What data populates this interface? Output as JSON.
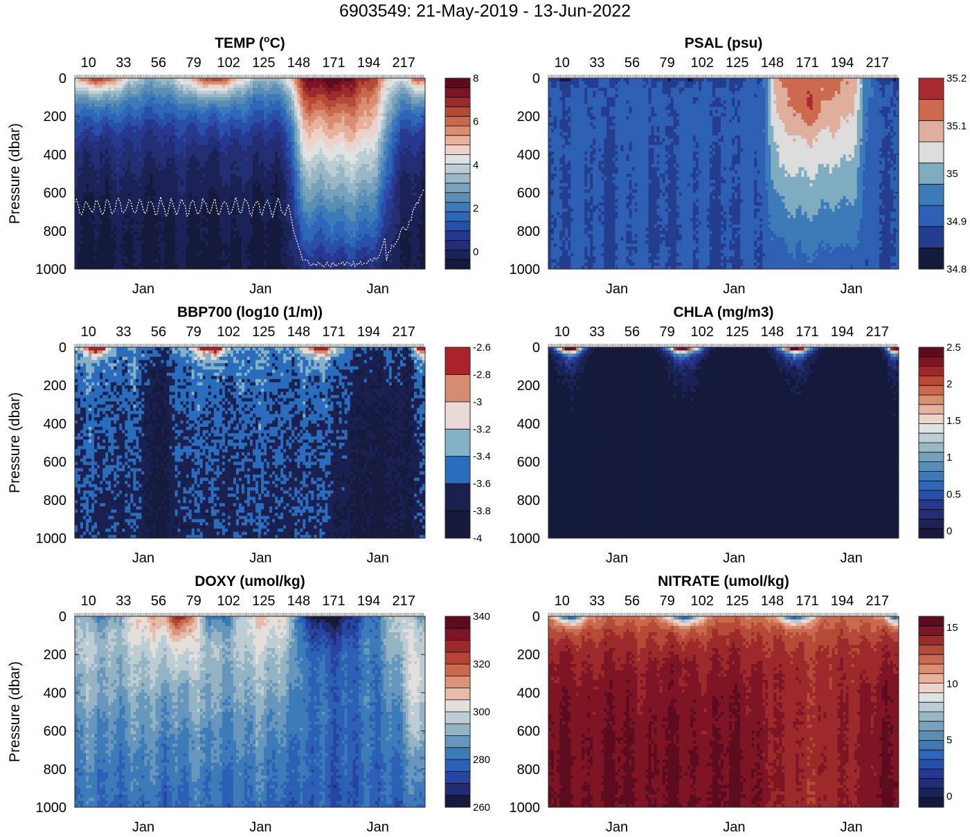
{
  "figure_title": "6903549: 21-May-2019 - 13-Jun-2022",
  "chart_data": [
    {
      "type": "heatmap",
      "id": "temp",
      "title_main": "TEMP (",
      "title_sup": "o",
      "title_unit": "C)",
      "ylabel": "Pressure (dbar)",
      "ylim": [
        0,
        1000
      ],
      "yticks": [
        "0",
        "200",
        "400",
        "600",
        "800",
        "1000"
      ],
      "profile_ticks": [
        "10",
        "33",
        "56",
        "79",
        "102",
        "125",
        "148",
        "171",
        "194",
        "217"
      ],
      "xlabels": [
        "Jan",
        "Jan",
        "Jan"
      ],
      "colorbar": {
        "min": -0.8,
        "max": 8,
        "ticks": [
          "8",
          "6",
          "4",
          "2",
          "0"
        ],
        "colors": [
          "#151a3c",
          "#1b2255",
          "#232e72",
          "#26398f",
          "#2850a8",
          "#2e66b8",
          "#3f7ab8",
          "#5a8fb5",
          "#78a2bb",
          "#99b7c5",
          "#bccdd4",
          "#dde2e2",
          "#ecd2c8",
          "#e6b29c",
          "#d98d71",
          "#c96a4f",
          "#b54a37",
          "#9c2a2a",
          "#7e1525",
          "#5c0c1e"
        ]
      },
      "mld_line": true
    },
    {
      "type": "heatmap",
      "id": "psal",
      "title_main": "PSAL (psu)",
      "title_sup": "",
      "title_unit": "",
      "ylabel": "",
      "ylim": [
        0,
        1000
      ],
      "yticks": [
        "0",
        "200",
        "400",
        "600",
        "800",
        "1000"
      ],
      "profile_ticks": [
        "10",
        "33",
        "56",
        "79",
        "102",
        "125",
        "148",
        "171",
        "194",
        "217"
      ],
      "xlabels": [
        "Jan",
        "Jan",
        "Jan"
      ],
      "colorbar": {
        "min": 34.8,
        "max": 35.2,
        "ticks": [
          "35.2",
          "35.1",
          "35",
          "34.9",
          "34.8"
        ],
        "colors": [
          "#151a3c",
          "#243d8e",
          "#2d5fb3",
          "#3d7ab8",
          "#80acc0",
          "#dcdcdc",
          "#dfae9c",
          "#cc6a50",
          "#a92a30"
        ]
      },
      "mld_line": false
    },
    {
      "type": "heatmap",
      "id": "bbp",
      "title_main": "BBP700 (log10 (1/m))",
      "title_sup": "",
      "title_unit": "",
      "ylabel": "Pressure (dbar)",
      "ylim": [
        0,
        1000
      ],
      "yticks": [
        "0",
        "200",
        "400",
        "600",
        "800",
        "1000"
      ],
      "profile_ticks": [
        "10",
        "33",
        "56",
        "79",
        "102",
        "125",
        "148",
        "171",
        "194",
        "217"
      ],
      "xlabels": [
        "Jan",
        "Jan",
        "Jan"
      ],
      "colorbar": {
        "min": -4,
        "max": -2.6,
        "ticks": [
          "-2.6",
          "-2.8",
          "-3",
          "-3.2",
          "-3.4",
          "-3.6",
          "-3.8",
          "-4"
        ],
        "colors": [
          "#161a3d",
          "#1a2150",
          "#2a6dbc",
          "#85b1c4",
          "#e8dad6",
          "#d58c72",
          "#a9232a"
        ]
      },
      "mld_line": false
    },
    {
      "type": "heatmap",
      "id": "chla",
      "title_main": "CHLA (mg/m3)",
      "title_sup": "",
      "title_unit": "",
      "ylabel": "",
      "ylim": [
        0,
        1000
      ],
      "yticks": [
        "0",
        "200",
        "400",
        "600",
        "800",
        "1000"
      ],
      "profile_ticks": [
        "10",
        "33",
        "56",
        "79",
        "102",
        "125",
        "148",
        "171",
        "194",
        "217"
      ],
      "xlabels": [
        "Jan",
        "Jan",
        "Jan"
      ],
      "colorbar": {
        "min": -0.1,
        "max": 2.5,
        "ticks": [
          "2.5",
          "2",
          "1.5",
          "1",
          "0.5",
          "0"
        ],
        "colors": [
          "#151a3c",
          "#1b2255",
          "#232e72",
          "#26398f",
          "#2850a8",
          "#2e66b8",
          "#3f7ab8",
          "#5a8fb5",
          "#78a2bb",
          "#99b7c5",
          "#bccdd4",
          "#dde2e2",
          "#ecd2c8",
          "#e6b29c",
          "#d98d71",
          "#c96a4f",
          "#b54a37",
          "#9c2a2a",
          "#7e1525",
          "#5c0c1e"
        ]
      },
      "mld_line": false
    },
    {
      "type": "heatmap",
      "id": "doxy",
      "title_main": "DOXY (umol/kg)",
      "title_sup": "",
      "title_unit": "",
      "ylabel": "Pressure (dbar)",
      "ylim": [
        0,
        1000
      ],
      "yticks": [
        "0",
        "200",
        "400",
        "600",
        "800",
        "1000"
      ],
      "profile_ticks": [
        "10",
        "33",
        "56",
        "79",
        "102",
        "125",
        "148",
        "171",
        "194",
        "217"
      ],
      "xlabels": [
        "Jan",
        "Jan",
        "Jan"
      ],
      "colorbar": {
        "min": 260,
        "max": 340,
        "ticks": [
          "340",
          "320",
          "300",
          "280",
          "260"
        ],
        "colors": [
          "#151a3c",
          "#212d70",
          "#2744a0",
          "#2c60b5",
          "#3d7ab8",
          "#6696bb",
          "#94b3c3",
          "#bccdd4",
          "#e3e0dc",
          "#e6bcaa",
          "#d9957a",
          "#c96a4f",
          "#b54435",
          "#9c2a2a",
          "#7e1525",
          "#5c0c1e"
        ]
      },
      "mld_line": false
    },
    {
      "type": "heatmap",
      "id": "nitrate",
      "title_main": "NITRATE (umol/kg)",
      "title_sup": "",
      "title_unit": "",
      "ylabel": "",
      "ylim": [
        0,
        1000
      ],
      "yticks": [
        "0",
        "200",
        "400",
        "600",
        "800",
        "1000"
      ],
      "profile_ticks": [
        "10",
        "33",
        "56",
        "79",
        "102",
        "125",
        "148",
        "171",
        "194",
        "217"
      ],
      "xlabels": [
        "Jan",
        "Jan",
        "Jan"
      ],
      "colorbar": {
        "min": -1,
        "max": 16,
        "ticks": [
          "15",
          "10",
          "5",
          "0"
        ],
        "colors": [
          "#151a3c",
          "#1b2255",
          "#232e72",
          "#26398f",
          "#2850a8",
          "#2e66b8",
          "#3f7ab8",
          "#5a8fb5",
          "#78a2bb",
          "#99b7c5",
          "#bccdd4",
          "#dde2e2",
          "#ecd2c8",
          "#e6b29c",
          "#d98d71",
          "#c96a4f",
          "#b54a37",
          "#9c2a2a",
          "#7e1525",
          "#5c0c1e"
        ]
      },
      "mld_line": false
    }
  ]
}
